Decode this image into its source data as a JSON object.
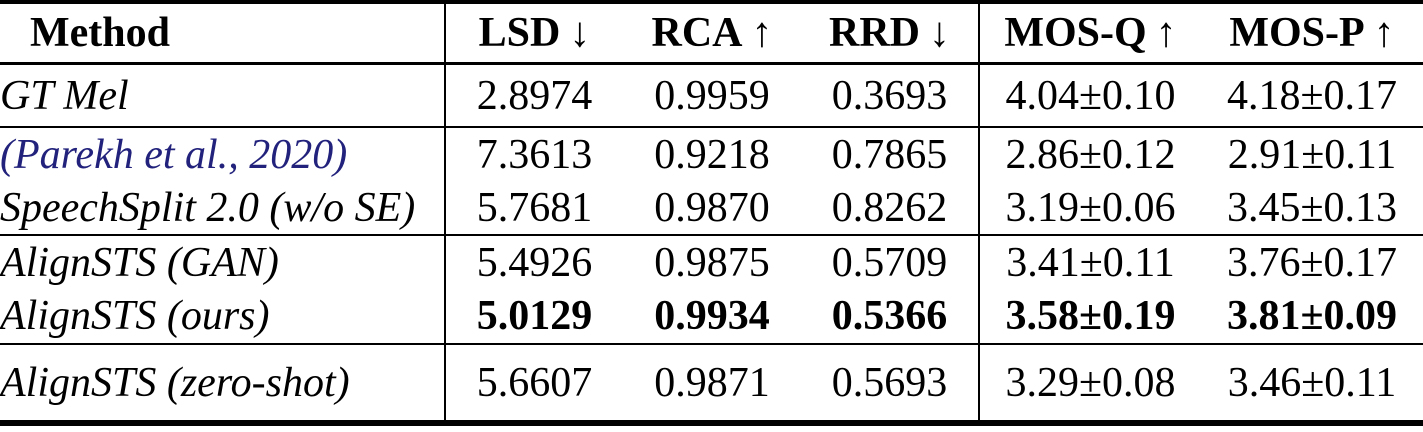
{
  "header": {
    "columns": [
      {
        "label": "Method",
        "arrow": ""
      },
      {
        "label": "LSD",
        "arrow": "↓"
      },
      {
        "label": "RCA",
        "arrow": "↑"
      },
      {
        "label": "RRD",
        "arrow": "↓"
      },
      {
        "label": "MOS-Q",
        "arrow": "↑"
      },
      {
        "label": "MOS-P",
        "arrow": "↑"
      }
    ]
  },
  "rows": [
    {
      "method": "GT Mel",
      "style": "regular",
      "values": [
        "2.8974",
        "0.9959",
        "0.3693",
        "4.04±0.10",
        "4.18±0.17"
      ]
    },
    {
      "method": "(Parekh et al., 2020)",
      "style": "citation",
      "values": [
        "7.3613",
        "0.9218",
        "0.7865",
        "2.86±0.12",
        "2.91±0.11"
      ]
    },
    {
      "method": "SpeechSplit 2.0 (w/o SE)",
      "style": "regular",
      "values": [
        "5.7681",
        "0.9870",
        "0.8262",
        "3.19±0.06",
        "3.45±0.13"
      ]
    },
    {
      "method": "AlignSTS (GAN)",
      "style": "regular",
      "values": [
        "5.4926",
        "0.9875",
        "0.5709",
        "3.41±0.11",
        "3.76±0.17"
      ]
    },
    {
      "method": "AlignSTS (ours)",
      "style": "bold-values",
      "values": [
        "5.0129",
        "0.9934",
        "0.5366",
        "3.58±0.19",
        "3.81±0.09"
      ]
    },
    {
      "method": "AlignSTS (zero-shot)",
      "style": "regular",
      "values": [
        "5.6607",
        "0.9871",
        "0.5693",
        "3.29±0.08",
        "3.46±0.11"
      ]
    }
  ],
  "colors": {
    "text": "#000000",
    "citation_link": "#22227c",
    "rule": "#000000",
    "background": "#ffffff"
  }
}
